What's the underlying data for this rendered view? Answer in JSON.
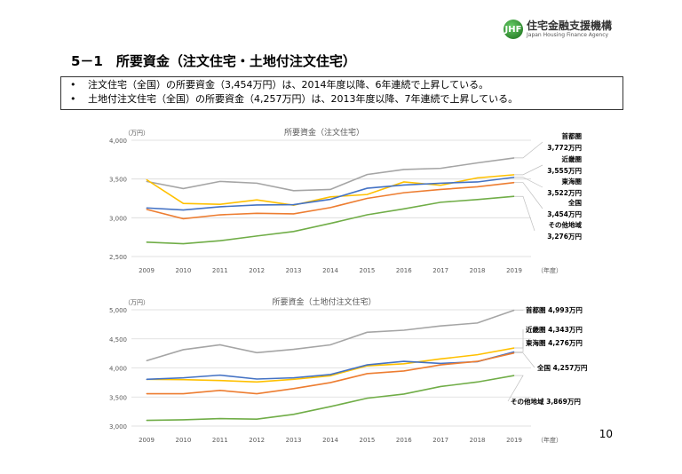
{
  "logo": {
    "jp": "住宅金融支援機構",
    "en": "Japan Housing Finance Agency",
    "mark": "JHF"
  },
  "title": "5－1　所要資金（注文住宅・土地付注文住宅）",
  "bullets": [
    "注文住宅（全国）の所要資金（3,454万円）は、2014年度以降、6年連続で上昇している。",
    "土地付注文住宅（全国）の所要資金（4,257万円）は、2013年度以降、7年連続で上昇している。"
  ],
  "bullet_symbol": "•",
  "page_number": "10",
  "chart_data": [
    {
      "type": "line",
      "title": "所要資金（注文住宅）",
      "ylabel": "（万円）",
      "xlabel": "（年度）",
      "ylim": [
        2500,
        4000
      ],
      "yticks": [
        "2,500",
        "3,000",
        "3,500",
        "4,000"
      ],
      "grid": true,
      "categories": [
        "2009",
        "2010",
        "2011",
        "2012",
        "2013",
        "2014",
        "2015",
        "2016",
        "2017",
        "2018",
        "2019"
      ],
      "series": [
        {
          "name": "首都圏",
          "end_label": "3,772万円",
          "color": "#a5a5a5",
          "values": [
            3469,
            3377,
            3469,
            3446,
            3350,
            3365,
            3558,
            3623,
            3638,
            3708,
            3772
          ]
        },
        {
          "name": "近畿圏",
          "end_label": "3,555万円",
          "color": "#ffc000",
          "values": [
            3492,
            3185,
            3173,
            3231,
            3162,
            3269,
            3300,
            3462,
            3419,
            3515,
            3555
          ]
        },
        {
          "name": "東海圏",
          "end_label": "3,522万円",
          "color": "#4472c4",
          "values": [
            3127,
            3100,
            3142,
            3165,
            3169,
            3238,
            3381,
            3423,
            3446,
            3462,
            3522
          ]
        },
        {
          "name": "全国",
          "end_label": "3,454万円",
          "color": "#ed7d31",
          "values": [
            3108,
            2988,
            3038,
            3058,
            3050,
            3131,
            3250,
            3323,
            3365,
            3400,
            3454
          ]
        },
        {
          "name": "その他地域",
          "end_label": "3,276万円",
          "color": "#70ad47",
          "values": [
            2685,
            2665,
            2704,
            2765,
            2823,
            2927,
            3038,
            3115,
            3200,
            3235,
            3276
          ]
        }
      ]
    },
    {
      "type": "line",
      "title": "所要資金（土地付注文住宅）",
      "ylabel": "（万円）",
      "xlabel": "（年度）",
      "ylim": [
        3000,
        5000
      ],
      "yticks": [
        "3,000",
        "3,500",
        "4,000",
        "4,500",
        "5,000"
      ],
      "grid": true,
      "categories": [
        "2009",
        "2010",
        "2011",
        "2012",
        "2013",
        "2014",
        "2015",
        "2016",
        "2017",
        "2018",
        "2019"
      ],
      "series": [
        {
          "name": "首都圏",
          "end_label": "4,993万円",
          "color": "#a5a5a5",
          "values": [
            4124,
            4314,
            4397,
            4263,
            4320,
            4397,
            4613,
            4649,
            4722,
            4773,
            4993
          ]
        },
        {
          "name": "近畿圏",
          "end_label": "4,343万円",
          "color": "#ffc000",
          "values": [
            3804,
            3799,
            3784,
            3758,
            3804,
            3866,
            4036,
            4072,
            4155,
            4227,
            4343
          ]
        },
        {
          "name": "東海圏",
          "end_label": "4,276万円",
          "color": "#4472c4",
          "values": [
            3804,
            3830,
            3876,
            3809,
            3830,
            3887,
            4052,
            4113,
            4077,
            4108,
            4276
          ]
        },
        {
          "name": "全国",
          "end_label": "4,257万円",
          "color": "#ed7d31",
          "values": [
            3557,
            3557,
            3613,
            3557,
            3644,
            3747,
            3902,
            3948,
            4052,
            4113,
            4257
          ]
        },
        {
          "name": "その他地域",
          "end_label": "3,869万円",
          "color": "#70ad47",
          "values": [
            3098,
            3108,
            3129,
            3119,
            3201,
            3335,
            3479,
            3551,
            3680,
            3758,
            3869
          ]
        }
      ]
    }
  ]
}
